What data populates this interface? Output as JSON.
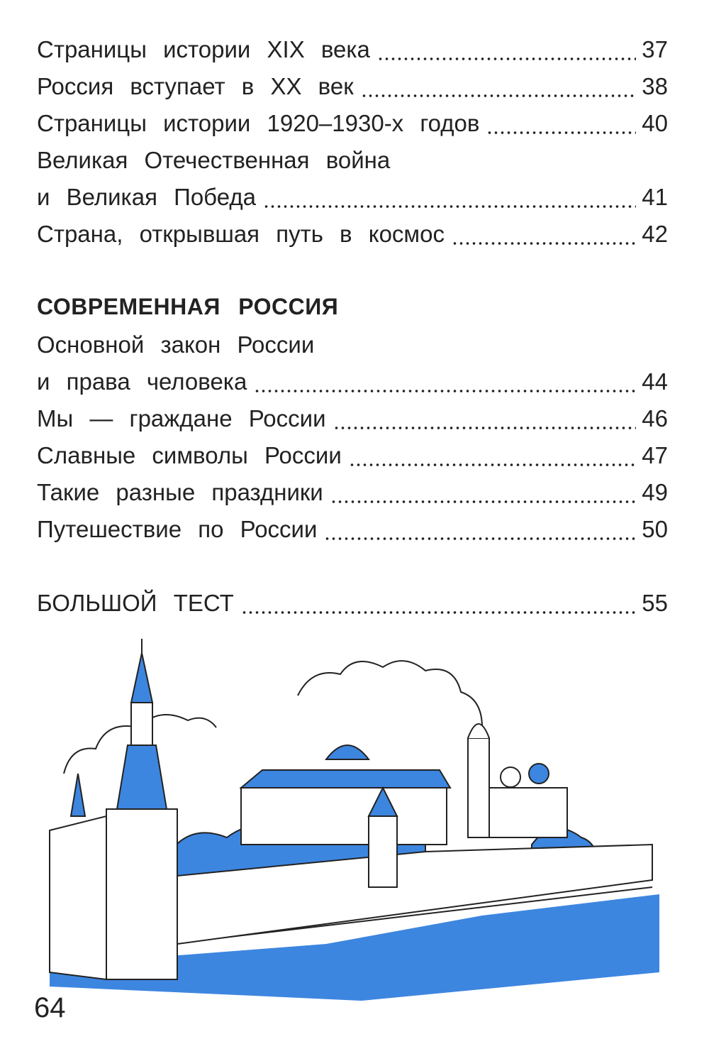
{
  "toc_part1": [
    {
      "title": "Страницы истории XIX века",
      "page": "37"
    },
    {
      "title": "Россия вступает в XX век",
      "page": "38"
    },
    {
      "title": "Страницы истории 1920–1930-х годов",
      "page": "40"
    },
    {
      "title": "Великая Отечественная война",
      "page": ""
    },
    {
      "title": "и Великая Победа",
      "page": "41"
    },
    {
      "title": "Страна, открывшая путь в космос",
      "page": "42"
    }
  ],
  "section_heading": "СОВРЕМЕННАЯ РОССИЯ",
  "toc_part2": [
    {
      "title": "Основной закон России",
      "page": ""
    },
    {
      "title": "и права человека",
      "page": "44"
    },
    {
      "title": "Мы — граждане России",
      "page": "46"
    },
    {
      "title": "Славные символы России",
      "page": "47"
    },
    {
      "title": "Такие разные праздники",
      "page": "49"
    },
    {
      "title": "Путешествие по России",
      "page": "50"
    }
  ],
  "final_entry": {
    "title": "БОЛЬШОЙ ТЕСТ",
    "page": "55"
  },
  "page_number": "64",
  "colors": {
    "accent_blue": "#3d86e0",
    "text": "#222222"
  },
  "illustration": "kremlin-drawing"
}
